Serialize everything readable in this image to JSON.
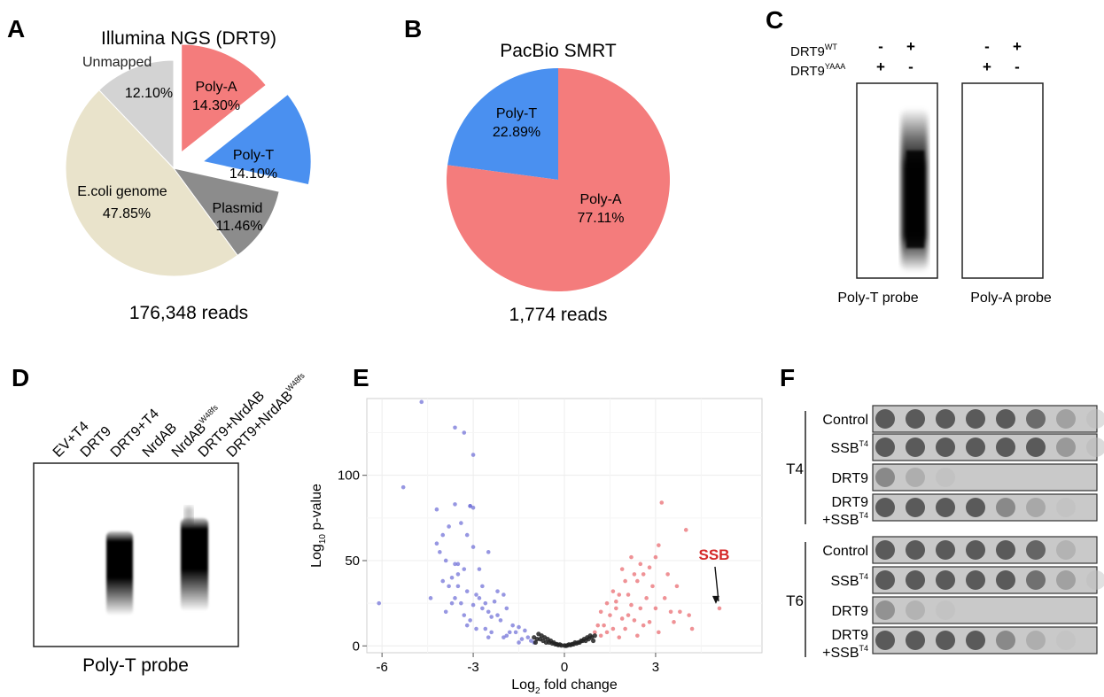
{
  "panels": {
    "A": {
      "letter": "A",
      "title": "Illumina NGS (DRT9)",
      "caption": "176,348 reads"
    },
    "B": {
      "letter": "B",
      "title": "PacBio SMRT",
      "caption": "1,774 reads"
    },
    "C": {
      "letter": "C",
      "row1_label": "DRT9",
      "row1_sup": "WT",
      "row2_label": "DRT9",
      "row2_sup": "YAAA",
      "row1_signs": [
        "-",
        "+",
        "-",
        "+"
      ],
      "row2_signs": [
        "+",
        "-",
        "+",
        "-"
      ],
      "blot1_label": "Poly-T probe",
      "blot2_label": "Poly-A probe"
    },
    "D": {
      "letter": "D",
      "lanes": [
        {
          "text": "EV+T4",
          "sup": ""
        },
        {
          "text": "DRT9",
          "sup": ""
        },
        {
          "text": "DRT9+T4",
          "sup": ""
        },
        {
          "text": "NrdAB",
          "sup": ""
        },
        {
          "text": "NrdAB",
          "sup": "W48fs"
        },
        {
          "text": "DRT9+NrdAB",
          "sup": ""
        },
        {
          "text": "DRT9+NrdAB",
          "sup": "W48fs"
        }
      ],
      "caption": "Poly-T probe"
    },
    "E": {
      "letter": "E",
      "annotation": "SSB"
    },
    "F": {
      "letter": "F",
      "groups": [
        {
          "label": "T4",
          "rows": [
            {
              "text": "Control",
              "sup": "",
              "pre": "",
              "spots": [
                1,
                1,
                1,
                1,
                1,
                0.85,
                0.45,
                0.12
              ]
            },
            {
              "text": "SSB",
              "sup": "T4",
              "pre": "",
              "spots": [
                1,
                1,
                1,
                1,
                1,
                1,
                0.5,
                0.15
              ]
            },
            {
              "text": "DRT9",
              "sup": "",
              "pre": "",
              "spots": [
                0.6,
                0.35,
                0.12,
                0,
                0,
                0,
                0,
                0
              ]
            },
            {
              "text": "DRT9",
              "sup": "T4",
              "pre": "+SSB",
              "spots": [
                1,
                1,
                1,
                1,
                0.6,
                0.4,
                0.1,
                0
              ]
            }
          ]
        },
        {
          "label": "T6",
          "rows": [
            {
              "text": "Control",
              "sup": "",
              "pre": "",
              "spots": [
                1,
                1,
                1,
                1,
                1,
                0.9,
                0.3,
                0
              ]
            },
            {
              "text": "SSB",
              "sup": "T4",
              "pre": "",
              "spots": [
                1,
                1,
                1,
                1,
                1,
                0.8,
                0.45,
                0.1
              ]
            },
            {
              "text": "DRT9",
              "sup": "",
              "pre": "",
              "spots": [
                0.55,
                0.3,
                0.1,
                0,
                0,
                0,
                0,
                0
              ]
            },
            {
              "text": "DRT9",
              "sup": "T4",
              "pre": "+SSB",
              "spots": [
                1,
                1,
                1,
                1,
                0.6,
                0.35,
                0.08,
                0
              ]
            }
          ]
        }
      ]
    }
  },
  "colors": {
    "polyA": "#f47c7c",
    "polyT": "#4a90f0",
    "plasmid": "#8c8c8c",
    "ecoli": "#e9e3cb",
    "unmapped": "#d3d3d3",
    "sig_down": "#6b6bd6",
    "sig_up": "#e8646a",
    "ns": "#222222",
    "ssb_label": "#d42a2a"
  },
  "chart_data": [
    {
      "type": "pie",
      "title": "Illumina NGS (DRT9)",
      "labels": [
        "Poly-A",
        "Poly-T",
        "Plasmid",
        "E.coli genome",
        "Unmapped"
      ],
      "values": [
        14.3,
        14.1,
        11.46,
        47.85,
        12.1
      ],
      "value_labels": [
        "14.30%",
        "14.10%",
        "11.46%",
        "47.85%",
        "12.10%"
      ],
      "exploded": [
        "Poly-A",
        "Poly-T"
      ]
    },
    {
      "type": "pie",
      "title": "PacBio SMRT",
      "labels": [
        "Poly-T",
        "Poly-A"
      ],
      "values": [
        22.89,
        77.11
      ],
      "value_labels": [
        "22.89%",
        "77.11%"
      ]
    },
    {
      "type": "scatter",
      "title": "",
      "xlabel": "Log2 fold change",
      "ylabel": "Log10 p-value",
      "xlim": [
        -6.5,
        6.5
      ],
      "ylim": [
        -4,
        145
      ],
      "xticks": [
        -6,
        -3,
        0,
        3
      ],
      "yticks": [
        0,
        50,
        100
      ],
      "grid": true,
      "series": [
        {
          "name": "",
          "color": "sig_down",
          "x": [
            -4.7,
            -3.6,
            -3.0,
            -3.3,
            -3.1,
            -5.3,
            -3.6,
            -3.4,
            -3.1,
            -3.0,
            -4.2,
            -3.8,
            -3.2,
            -4.1,
            -3.9,
            -3.5,
            -3.3,
            -2.8,
            -3.7,
            -3.5,
            -3.2,
            -2.9,
            -4.0,
            -3.8,
            -3.6,
            -3.4,
            -3.0,
            -2.7,
            -2.5,
            -3.9,
            -3.3,
            -3.1,
            -2.6,
            -2.4,
            -2.2,
            -2.8,
            -2.6,
            -3.2,
            -2.0,
            -2.3,
            -1.9,
            -2.1,
            -2.4,
            -2.9,
            -1.7,
            -2.2,
            -1.5,
            -1.8,
            -2.0,
            -2.5,
            -1.6,
            -1.4,
            -1.9,
            -1.2,
            -1.3,
            -1.1,
            -1.5,
            -1.0,
            -2.7,
            -3.5,
            -4.4,
            -3.7,
            -6.1,
            -4.2,
            -4.0,
            -2.5,
            -3.0,
            -3.6
          ],
          "y": [
            143,
            128,
            112,
            125,
            82,
            93,
            83,
            72,
            82,
            81,
            80,
            70,
            65,
            55,
            50,
            48,
            45,
            45,
            40,
            35,
            32,
            30,
            38,
            35,
            28,
            25,
            24,
            22,
            20,
            20,
            18,
            15,
            25,
            17,
            32,
            28,
            10,
            12,
            30,
            26,
            22,
            15,
            8,
            10,
            12,
            18,
            11,
            8,
            5,
            5,
            8,
            4,
            6,
            5,
            9,
            3,
            2,
            2,
            35,
            42,
            28,
            25,
            25,
            60,
            65,
            55,
            58,
            48
          ]
        },
        {
          "name": "",
          "color": "sig_up",
          "x": [
            3.2,
            4.0,
            3.1,
            3.0,
            2.2,
            2.5,
            2.8,
            1.9,
            2.3,
            2.6,
            3.4,
            3.7,
            2.0,
            2.4,
            2.9,
            1.6,
            1.8,
            2.1,
            2.7,
            3.3,
            1.4,
            1.7,
            2.2,
            2.5,
            3.0,
            3.5,
            4.1,
            1.2,
            1.5,
            1.9,
            2.3,
            2.8,
            3.8,
            1.1,
            1.3,
            1.6,
            2.0,
            2.6,
            1.0,
            1.2,
            1.4,
            1.8,
            2.4,
            3.1,
            4.2,
            1.7,
            2.1,
            3.6,
            5.1
          ],
          "y": [
            84,
            68,
            59,
            52,
            52,
            48,
            46,
            45,
            42,
            42,
            42,
            35,
            38,
            38,
            35,
            32,
            30,
            30,
            28,
            28,
            25,
            26,
            24,
            22,
            22,
            20,
            18,
            20,
            18,
            16,
            15,
            14,
            20,
            12,
            12,
            10,
            10,
            12,
            8,
            6,
            8,
            5,
            6,
            8,
            10,
            22,
            18,
            14,
            22
          ]
        },
        {
          "name": "",
          "color": "ns",
          "x": [
            -1.0,
            -0.9,
            -0.8,
            -0.7,
            -0.6,
            -0.5,
            -0.4,
            -0.3,
            -0.2,
            -0.1,
            0,
            0.1,
            0.2,
            0.3,
            0.4,
            0.5,
            0.6,
            0.7,
            0.8,
            0.9,
            1.0,
            -0.85,
            -0.65,
            -0.45,
            -0.25,
            0.25,
            0.45,
            0.65,
            0.85,
            -0.95,
            0.95,
            -0.55,
            0.55,
            -0.35,
            0.35,
            -0.15,
            0.15,
            -0.75,
            0.75,
            0.05
          ],
          "y": [
            5,
            4,
            4,
            3,
            2,
            2,
            1.5,
            1,
            0.5,
            0.3,
            0.2,
            0.3,
            0.5,
            1,
            1.5,
            2,
            3,
            3,
            4,
            5,
            6,
            7,
            5,
            3,
            1,
            1,
            2,
            4,
            6,
            2,
            3,
            4,
            3,
            2,
            2,
            0.8,
            0.8,
            6,
            5,
            0.1
          ]
        }
      ],
      "annotations": [
        {
          "text": "SSB",
          "x": 5.1,
          "y": 22
        }
      ]
    }
  ]
}
